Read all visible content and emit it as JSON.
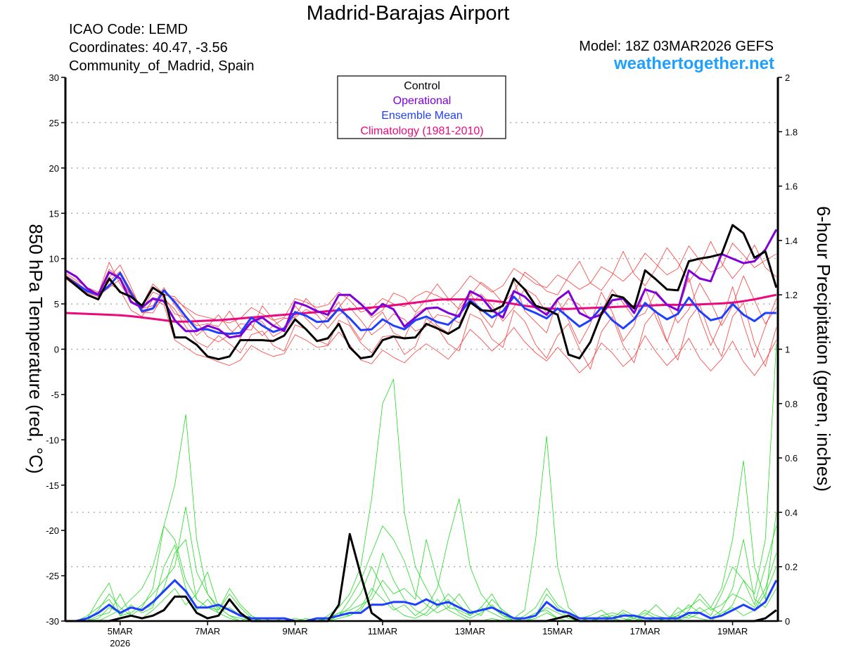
{
  "header": {
    "title": "Madrid-Barajas Airport",
    "icao": "ICAO Code: LEMD",
    "coordinates": "Coordinates: 40.47, -3.56",
    "region": "Community_of_Madrid, Spain",
    "model": "Model: 18Z 03MAR2026 GEFS",
    "site": "weathertogether.net"
  },
  "colors": {
    "control": "#000000",
    "operational": "#8000d8",
    "mean": "#1f3fff",
    "climatology": "#ea0a7e",
    "temp_members": "#ff3b3b",
    "precip_members": "#22dd22",
    "site": "#1ea0ff",
    "grid": "#b0b0b0"
  },
  "chart_data": {
    "type": "line",
    "title": "Madrid-Barajas Airport",
    "start": "03MAR2026 18Z",
    "step_hours": 6,
    "ylabel": "850 hPa Temperature (red, °C)",
    "y2label": "6-hour Precipitation (green, inches)",
    "ylim": [
      -30,
      30
    ],
    "y2lim": [
      0,
      2
    ],
    "yticks": [
      "30",
      "25",
      "20",
      "15",
      "10",
      "5",
      "0",
      "-5",
      "-10",
      "-15",
      "-20",
      "-25",
      "-30"
    ],
    "y2ticks": [
      "2",
      "1.8",
      "1.6",
      "1.4",
      "1.2",
      "1",
      "0.8",
      "0.6",
      "0.4",
      "0.2",
      "0"
    ],
    "xticks": [
      {
        "label": "5MAR",
        "hours": 30
      },
      {
        "label": "7MAR",
        "hours": 78
      },
      {
        "label": "9MAR",
        "hours": 126
      },
      {
        "label": "11MAR",
        "hours": 174
      },
      {
        "label": "13MAR",
        "hours": 222
      },
      {
        "label": "15MAR",
        "hours": 270
      },
      {
        "label": "17MAR",
        "hours": 318
      },
      {
        "label": "19MAR",
        "hours": 366
      }
    ],
    "year_label": "2026",
    "legend": [
      "Control",
      "Operational",
      "Ensemble Mean",
      "Climatology (1981-2010)"
    ],
    "legend_position": "top-center",
    "temperature": {
      "control": [
        8,
        7,
        6,
        5.5,
        7.8,
        6.3,
        5.8,
        4.8,
        6.8,
        6,
        1.3,
        1.3,
        0.5,
        -0.8,
        -1.1,
        -0.8,
        1,
        1,
        1,
        0.9,
        1.5,
        3.3,
        2.2,
        0.9,
        1.2,
        2.8,
        0.2,
        -1,
        -0.8,
        1,
        1.4,
        1.2,
        1.3,
        2.8,
        2.3,
        1.7,
        2.4,
        5.2,
        4.3,
        4.2,
        4.8,
        7.8,
        6.6,
        4.8,
        4.4,
        3.8,
        -0.6,
        -1,
        0.8,
        3.9,
        6,
        5.7,
        4.5,
        8.7,
        7.7,
        6.6,
        6.5,
        9.7,
        10,
        10.2,
        10.5,
        13.7,
        12.8,
        10.1,
        10.8,
        6.8
      ],
      "operational": [
        8.7,
        8,
        6.7,
        6,
        8.5,
        7.8,
        5.2,
        4.6,
        5.6,
        5.3,
        3.2,
        2,
        2,
        2.6,
        2.2,
        1.3,
        1.5,
        3,
        3.5,
        2.6,
        2,
        5.2,
        4.8,
        4.2,
        3.8,
        6,
        6,
        5,
        3.8,
        5,
        4.4,
        2.5,
        3.5,
        4.5,
        4.6,
        4,
        3.6,
        6.4,
        5.8,
        4.3,
        3.5,
        6.4,
        5.8,
        4.6,
        3.8,
        5.5,
        6.4,
        4,
        3.4,
        3.8,
        5.4,
        5.6,
        4,
        6.6,
        6.2,
        4.9,
        4.3,
        8.7,
        7.8,
        7.5,
        10.5,
        10,
        9.5,
        9.7,
        11,
        13.2
      ],
      "mean": [
        8,
        7.2,
        6.4,
        6,
        7,
        8.4,
        6.2,
        4.2,
        4.5,
        6.5,
        5.2,
        3.6,
        2.2,
        2.2,
        1.8,
        1.7,
        1.8,
        3.5,
        2.6,
        1.9,
        2.3,
        4.1,
        3.7,
        3,
        3.1,
        4.5,
        3.4,
        2.1,
        2.2,
        3.3,
        2.6,
        2.2,
        3.2,
        3.6,
        3,
        2.7,
        3.8,
        5.4,
        4.4,
        3.5,
        4.2,
        5.8,
        4.5,
        4,
        3.4,
        4.5,
        3.5,
        2.5,
        3.2,
        4.6,
        3.2,
        2.3,
        3.3,
        5.1,
        4.1,
        3.3,
        3.9,
        5.7,
        4.2,
        3.2,
        3.5,
        5,
        3.8,
        3.1,
        4,
        4
      ],
      "climatology": [
        4,
        3.95,
        3.9,
        3.85,
        3.8,
        3.75,
        3.65,
        3.5,
        3.35,
        3.2,
        3.05,
        3.05,
        3.1,
        3.15,
        3.2,
        3.3,
        3.4,
        3.5,
        3.6,
        3.7,
        3.8,
        3.9,
        4,
        4.1,
        4.2,
        4.3,
        4.4,
        4.5,
        4.6,
        4.7,
        4.85,
        5,
        5.15,
        5.3,
        5.45,
        5.5,
        5.5,
        5.5,
        5.45,
        5.35,
        5.2,
        5,
        4.8,
        4.65,
        4.5,
        4.45,
        4.45,
        4.5,
        4.55,
        4.6,
        4.65,
        4.7,
        4.75,
        4.8,
        4.85,
        4.9,
        4.9,
        4.9,
        4.95,
        5,
        5.05,
        5.15,
        5.3,
        5.5,
        5.75,
        6
      ],
      "members": [
        [
          8.2,
          7.4,
          6.5,
          6.2,
          8.8,
          7.9,
          5.8,
          4.9,
          7.2,
          6.1,
          5.5,
          4.6,
          3.8,
          3.5,
          3.2,
          2.9,
          3.4,
          4.6,
          3.9,
          3.2,
          3.5,
          5.6,
          5.2,
          4.6,
          4.9,
          6.3,
          5.4,
          4.1,
          4.5,
          5.6,
          5,
          4.7,
          5.8,
          6.4,
          5.9,
          5.3,
          6.5,
          8.1,
          7.2,
          6.3,
          7,
          8.9,
          8.1,
          7.2,
          6.8,
          8.2,
          7.5,
          6.6,
          7.3,
          9.1,
          8.4,
          7.5,
          8.7,
          10.6,
          9.4,
          8.2,
          8.9,
          11.4,
          9.8,
          8.5,
          9.1,
          11.7,
          10.4,
          9,
          9.8,
          10.5
        ],
        [
          7.8,
          6.9,
          6,
          5.6,
          7.2,
          6.5,
          4.3,
          3.6,
          5.5,
          4.9,
          1,
          0.2,
          -0.6,
          -0.9,
          -1.4,
          -1.8,
          -1.2,
          0.4,
          -0.3,
          -0.8,
          -0.5,
          1.6,
          1,
          0.2,
          0.4,
          1.9,
          0.5,
          -1.2,
          -1.6,
          -0.1,
          -0.9,
          -1.5,
          -0.3,
          0.6,
          -0.2,
          -1.1,
          0.3,
          2.2,
          1.1,
          -0.2,
          0.9,
          2.4,
          0.8,
          -0.4,
          -1.3,
          0.2,
          -1.1,
          -2.6,
          -1.5,
          0.7,
          -0.4,
          -1.9,
          -0.8,
          1.5,
          -0.3,
          -1.8,
          -0.6,
          1.2,
          -1,
          -2.4,
          -1.1,
          0.9,
          -1.4,
          -2.9,
          -1.2,
          1
        ],
        [
          8,
          7,
          6.2,
          5.8,
          7.5,
          8.6,
          6.5,
          4.5,
          4.8,
          6.8,
          4.9,
          3.2,
          1.5,
          2.5,
          3.8,
          2.2,
          1.2,
          3.6,
          3,
          1.4,
          2.1,
          4.8,
          3.4,
          2.2,
          3.6,
          5.2,
          2.8,
          1,
          2.9,
          4.1,
          1.8,
          1.2,
          3.9,
          4.6,
          2.6,
          1.8,
          4.7,
          6.3,
          3.9,
          2.4,
          5.1,
          7.6,
          4.2,
          3,
          1.8,
          5.4,
          3.2,
          0.6,
          2.8,
          6.3,
          4.1,
          0.9,
          2.6,
          6.8,
          3.5,
          0.8,
          4.2,
          7.9,
          3.6,
          0.4,
          3.1,
          6.9,
          2.8,
          -0.9,
          2.5,
          5.6
        ],
        [
          8.4,
          7.6,
          6.8,
          6.3,
          7.9,
          9.3,
          6.9,
          4.1,
          4,
          6,
          5.8,
          4.4,
          3,
          1.4,
          0.8,
          1.6,
          2.8,
          2.7,
          1.5,
          2.6,
          3.4,
          3.5,
          4.4,
          3.8,
          2.3,
          3.8,
          4.6,
          3.2,
          1.6,
          2.5,
          3.9,
          3.3,
          2,
          2.5,
          3.8,
          3.6,
          2.9,
          4.9,
          6.1,
          4.8,
          3.1,
          4.6,
          6.7,
          5.9,
          4,
          3.8,
          5.6,
          4.9,
          3.2,
          4.1,
          6.6,
          5.1,
          3.4,
          4,
          6.4,
          5,
          2.9,
          4.4,
          7.3,
          5.2,
          2.6,
          4.8,
          8.1,
          5.4,
          2.8,
          4.6
        ],
        [
          7.9,
          7.1,
          6.3,
          5.9,
          6.8,
          7.7,
          6,
          4,
          4.4,
          5.6,
          4.4,
          2.5,
          0.8,
          0.2,
          1.5,
          0.6,
          -0.4,
          1.6,
          2,
          0.4,
          -0.2,
          2.7,
          2.2,
          1,
          0.5,
          3.2,
          2.6,
          0.7,
          -0.4,
          1.4,
          1.5,
          -0.6,
          0.3,
          3.4,
          2.4,
          0.6,
          -0.2,
          3.9,
          3.3,
          1.1,
          0.2,
          4.3,
          3.1,
          0.5,
          -1,
          1.5,
          2.8,
          0,
          -2.2,
          1.9,
          3.6,
          0.4,
          -1.5,
          2.8,
          4.3,
          0.9,
          -1.2,
          3.3,
          4.9,
          1.5,
          -0.8,
          3.6,
          5.1,
          0.7,
          -1.9,
          2.4
        ],
        [
          8.1,
          7.3,
          6.4,
          6.1,
          9.6,
          7.2,
          5.4,
          4.4,
          6.3,
          5.8,
          3.9,
          3.5,
          2.6,
          2.8,
          2.5,
          4.2,
          2.3,
          2.1,
          4.8,
          3.3,
          2,
          3.7,
          5.6,
          4.3,
          3.3,
          4.6,
          6.1,
          5,
          3.5,
          4.3,
          6.2,
          5.7,
          4.1,
          5.5,
          7.2,
          5.6,
          4.4,
          5.9,
          7.4,
          6.5,
          5.1,
          6.3,
          8.5,
          7.6,
          6.4,
          6,
          8,
          9.7,
          7.3,
          6.5,
          8.2,
          10.8,
          8.3,
          7,
          8.9,
          11.2,
          9.6,
          7.4,
          9.2,
          11.9,
          9.5,
          7.8,
          9.3,
          11.5,
          9,
          8
        ]
      ]
    },
    "precipitation": {
      "control": [
        0,
        0,
        0,
        0,
        0,
        0.01,
        0.02,
        0.01,
        0.02,
        0.04,
        0.09,
        0.09,
        0.03,
        0.01,
        0.02,
        0.08,
        0.03,
        0,
        0,
        0,
        0,
        0,
        0,
        0,
        0,
        0.06,
        0.32,
        0.17,
        0.03,
        0,
        0,
        0,
        0,
        0,
        0,
        0,
        0,
        0,
        0,
        0,
        0,
        0,
        0,
        0,
        0,
        0.01,
        0.02,
        0,
        0,
        0,
        0,
        0,
        0,
        0,
        0,
        0,
        0,
        0,
        0,
        0,
        0,
        0,
        0,
        0,
        0.01,
        0.04
      ],
      "mean": [
        0,
        0,
        0.01,
        0.03,
        0.06,
        0.03,
        0.05,
        0.04,
        0.07,
        0.11,
        0.15,
        0.11,
        0.05,
        0.05,
        0.06,
        0.04,
        0.02,
        0.01,
        0.01,
        0.01,
        0.01,
        0,
        0,
        0.01,
        0.01,
        0.02,
        0.03,
        0.03,
        0.06,
        0.06,
        0.07,
        0.07,
        0.06,
        0.08,
        0.06,
        0.07,
        0.05,
        0.03,
        0.04,
        0.05,
        0.03,
        0.01,
        0.01,
        0.02,
        0.07,
        0.04,
        0.03,
        0.01,
        0.01,
        0.01,
        0.01,
        0.02,
        0.02,
        0.01,
        0.01,
        0.01,
        0.01,
        0.03,
        0.03,
        0.01,
        0.02,
        0.04,
        0.06,
        0.04,
        0.07,
        0.15
      ],
      "members": [
        [
          0,
          0,
          0,
          0.04,
          0.1,
          0.05,
          0.02,
          0.05,
          0.12,
          0.35,
          0.5,
          0.76,
          0.3,
          0.1,
          0.05,
          0.02,
          0,
          0,
          0.01,
          0,
          0,
          0,
          0,
          0,
          0,
          0.02,
          0.05,
          0.1,
          0.2,
          0.12,
          0.05,
          0.02,
          0.01,
          0.03,
          0.08,
          0.04,
          0.02,
          0,
          0,
          0.01,
          0,
          0,
          0,
          0.02,
          0.1,
          0.05,
          0.01,
          0,
          0,
          0,
          0.01,
          0.04,
          0.02,
          0,
          0,
          0,
          0.02,
          0.06,
          0.03,
          0.01,
          0.04,
          0.12,
          0.3,
          0.08,
          0.05,
          0.12
        ],
        [
          0,
          0,
          0.01,
          0.08,
          0.14,
          0.02,
          0.06,
          0.03,
          0.05,
          0.2,
          0.28,
          0.12,
          0.04,
          0.08,
          0.03,
          0.01,
          0,
          0.02,
          0,
          0,
          0,
          0,
          0.01,
          0,
          0.02,
          0.05,
          0.1,
          0.2,
          0.45,
          0.8,
          0.89,
          0.4,
          0.2,
          0.12,
          0.05,
          0.1,
          0.06,
          0.02,
          0.05,
          0.1,
          0.03,
          0,
          0.01,
          0.03,
          0.04,
          0.01,
          0.02,
          0,
          0,
          0.02,
          0.01,
          0,
          0.01,
          0.03,
          0.01,
          0,
          0,
          0.02,
          0.05,
          0.02,
          0.1,
          0.2,
          0.15,
          0.06,
          0.2,
          0.35
        ],
        [
          0,
          0,
          0,
          0.02,
          0.03,
          0.1,
          0.02,
          0.01,
          0.04,
          0.08,
          0.12,
          0.06,
          0.1,
          0.18,
          0.05,
          0.02,
          0.01,
          0,
          0,
          0,
          0.01,
          0,
          0,
          0,
          0.01,
          0.03,
          0.02,
          0.05,
          0.12,
          0.08,
          0.04,
          0.06,
          0.02,
          0.05,
          0.12,
          0.3,
          0.45,
          0.2,
          0.1,
          0.05,
          0.02,
          0.01,
          0.04,
          0.3,
          0.68,
          0.2,
          0.05,
          0.01,
          0.02,
          0.04,
          0.01,
          0,
          0.02,
          0.01,
          0,
          0,
          0.05,
          0.02,
          0.01,
          0,
          0.03,
          0.05,
          0.02,
          0.04,
          0.1,
          0.2
        ],
        [
          0,
          0,
          0,
          0,
          0.02,
          0.04,
          0.08,
          0.12,
          0.2,
          0.35,
          0.3,
          0.15,
          0.08,
          0.05,
          0.04,
          0.12,
          0.06,
          0.02,
          0,
          0,
          0,
          0.01,
          0,
          0,
          0,
          0.01,
          0.02,
          0.04,
          0.1,
          0.25,
          0.15,
          0.08,
          0.04,
          0.02,
          0.05,
          0.08,
          0.03,
          0.01,
          0.03,
          0.06,
          0.02,
          0,
          0.01,
          0.02,
          0.05,
          0.03,
          0.01,
          0,
          0,
          0.01,
          0.02,
          0.01,
          0,
          0.02,
          0.06,
          0.02,
          0,
          0.04,
          0.1,
          0.05,
          0.12,
          0.3,
          0.59,
          0.2,
          0.08,
          0.4
        ],
        [
          0,
          0,
          0.02,
          0.05,
          0.08,
          0.02,
          0.03,
          0.06,
          0.1,
          0.15,
          0.2,
          0.42,
          0.18,
          0.1,
          0.04,
          0.1,
          0.05,
          0.01,
          0,
          0,
          0,
          0,
          0,
          0.01,
          0,
          0.02,
          0.08,
          0.15,
          0.25,
          0.35,
          0.3,
          0.22,
          0.1,
          0.06,
          0.03,
          0.05,
          0.1,
          0.04,
          0.02,
          0.08,
          0.04,
          0.01,
          0,
          0.01,
          0.03,
          0.01,
          0,
          0,
          0.01,
          0,
          0,
          0.03,
          0.01,
          0,
          0,
          0.01,
          0.02,
          0.01,
          0.03,
          0.05,
          0.02,
          0.06,
          0.15,
          0.1,
          0.3,
          1.02
        ],
        [
          0,
          0,
          0,
          0.01,
          0.05,
          0.03,
          0.05,
          0.04,
          0.06,
          0.12,
          0.25,
          0.3,
          0.08,
          0.05,
          0.03,
          0.05,
          0.02,
          0,
          0.01,
          0,
          0,
          0,
          0,
          0,
          0.01,
          0.03,
          0.04,
          0.06,
          0.08,
          0.15,
          0.1,
          0.12,
          0.08,
          0.3,
          0.15,
          0.05,
          0.04,
          0.02,
          0.05,
          0.03,
          0.01,
          0,
          0.02,
          0.05,
          0.12,
          0.06,
          0.03,
          0.01,
          0,
          0.02,
          0.03,
          0.02,
          0.01,
          0.04,
          0.02,
          0.01,
          0.03,
          0.05,
          0.08,
          0.04,
          0.06,
          0.1,
          0.08,
          0.05,
          0.12,
          0.25
        ]
      ]
    }
  }
}
